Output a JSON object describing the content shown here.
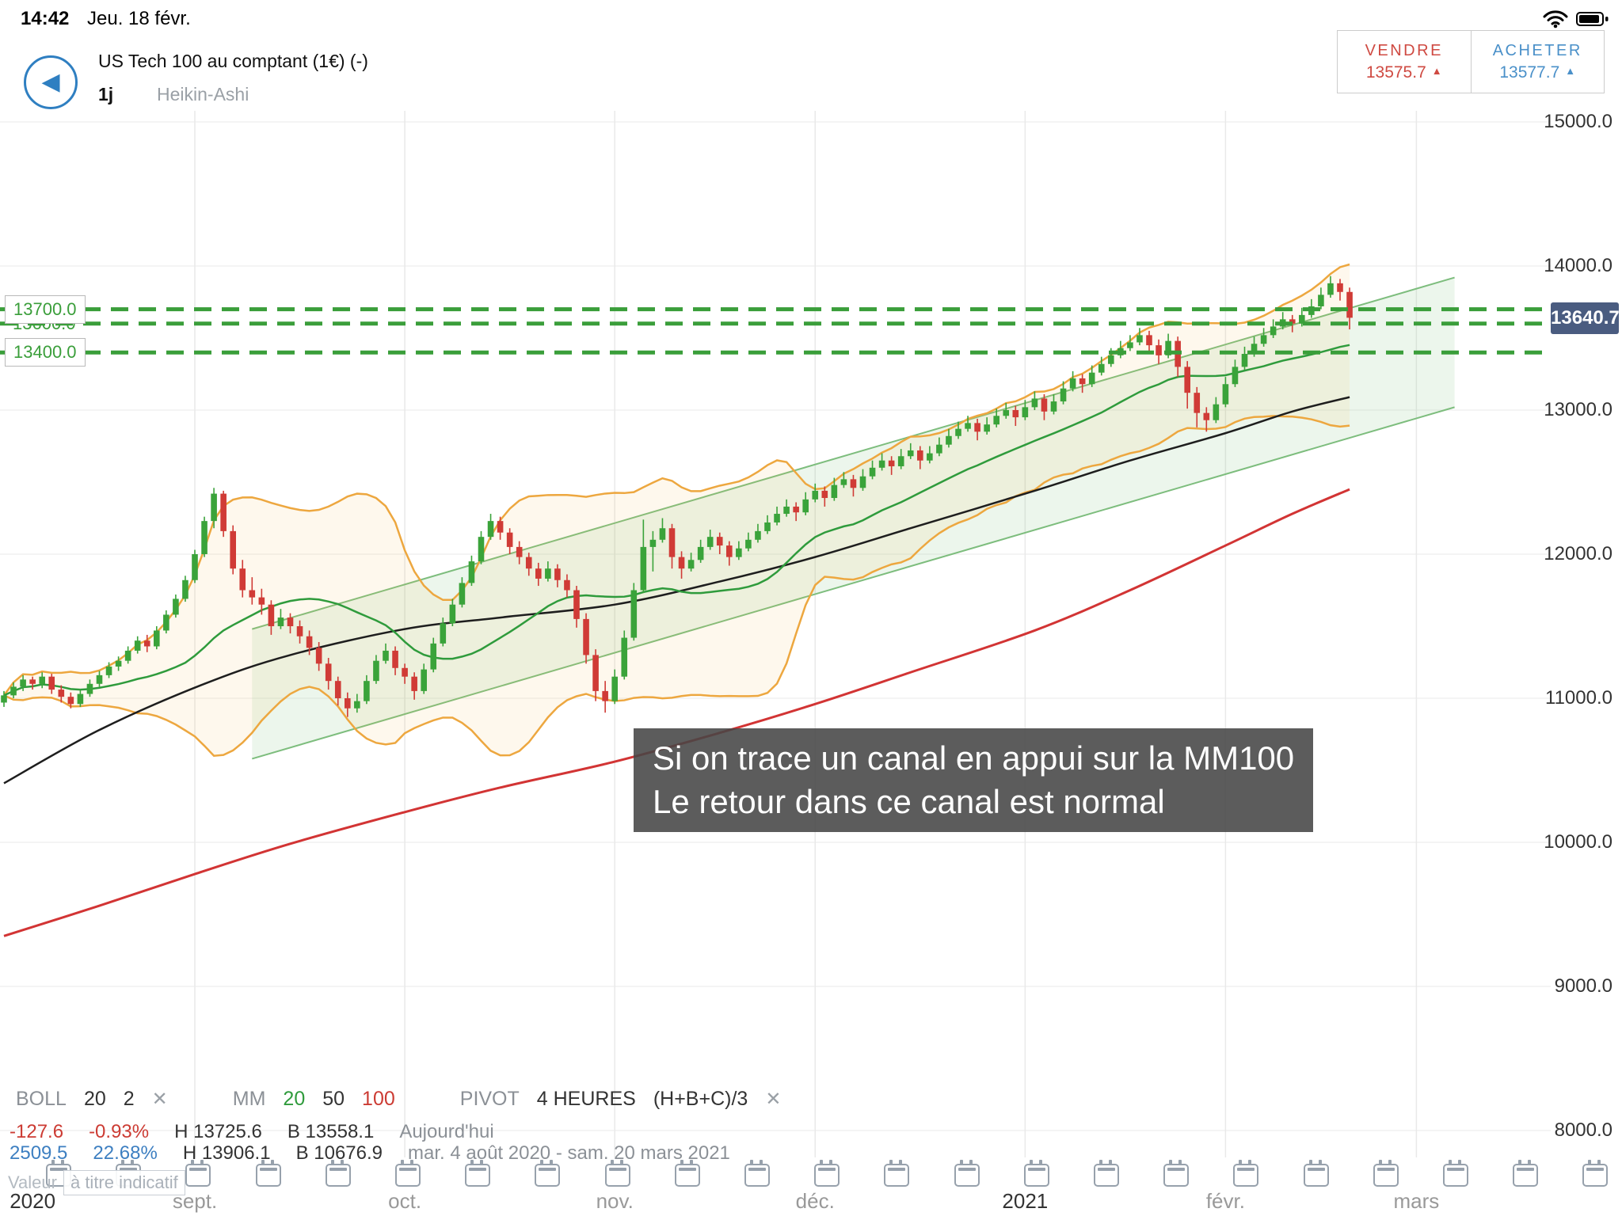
{
  "status_bar": {
    "time": "14:42",
    "date": "Jeu. 18 févr."
  },
  "header": {
    "title": "US Tech 100 au comptant (1€) (-)",
    "timeframe": "1j",
    "chart_type": "Heikin-Ashi",
    "sell": {
      "label": "VENDRE",
      "price": "13575.7",
      "arrow": "▲"
    },
    "buy": {
      "label": "ACHETER",
      "price": "13577.7",
      "arrow": "▲"
    }
  },
  "chart_data": {
    "type": "candlestick-heikin-ashi",
    "title": "US Tech 100 au comptant - daily Heikin-Ashi with Bollinger(20,2), MM 20/50/100, pivots and trend channel",
    "y_axis": {
      "values": [
        15000,
        14000,
        13000,
        12000,
        11000,
        10000,
        9000,
        8000
      ],
      "ticks": [
        "15000.0",
        "14000.0",
        "13000.0",
        "12000.0",
        "11000.0",
        "10000.0",
        "9000.0",
        "8000.0"
      ]
    },
    "x_labels": [
      {
        "text": "2020",
        "i": 3,
        "grid": false,
        "strong": true
      },
      {
        "text": "sept.",
        "i": 20,
        "grid": true,
        "strong": false
      },
      {
        "text": "oct.",
        "i": 42,
        "grid": true,
        "strong": false
      },
      {
        "text": "nov.",
        "i": 64,
        "grid": true,
        "strong": false
      },
      {
        "text": "déc.",
        "i": 85,
        "grid": true,
        "strong": false
      },
      {
        "text": "2021",
        "i": 107,
        "grid": true,
        "strong": true
      },
      {
        "text": "févr.",
        "i": 128,
        "grid": true,
        "strong": false
      },
      {
        "text": "mars",
        "i": 148,
        "grid": true,
        "strong": false
      }
    ],
    "candles": [
      [
        10970,
        11050,
        10940,
        11020
      ],
      [
        11020,
        11110,
        11000,
        11080
      ],
      [
        11080,
        11160,
        11050,
        11130
      ],
      [
        11130,
        11150,
        11060,
        11100
      ],
      [
        11100,
        11180,
        11070,
        11150
      ],
      [
        11150,
        11170,
        11030,
        11060
      ],
      [
        11060,
        11090,
        10970,
        11010
      ],
      [
        11010,
        11040,
        10930,
        10960
      ],
      [
        10960,
        11060,
        10940,
        11030
      ],
      [
        11030,
        11130,
        11010,
        11100
      ],
      [
        11100,
        11190,
        11080,
        11160
      ],
      [
        11160,
        11250,
        11140,
        11220
      ],
      [
        11220,
        11290,
        11190,
        11260
      ],
      [
        11260,
        11360,
        11240,
        11330
      ],
      [
        11330,
        11430,
        11310,
        11400
      ],
      [
        11400,
        11440,
        11320,
        11360
      ],
      [
        11360,
        11500,
        11340,
        11470
      ],
      [
        11470,
        11610,
        11450,
        11580
      ],
      [
        11580,
        11720,
        11560,
        11690
      ],
      [
        11690,
        11850,
        11670,
        11820
      ],
      [
        11820,
        12030,
        11800,
        12000
      ],
      [
        12000,
        12260,
        11980,
        12230
      ],
      [
        12230,
        12460,
        12180,
        12420
      ],
      [
        12420,
        12440,
        12120,
        12160
      ],
      [
        12160,
        12200,
        11860,
        11900
      ],
      [
        11900,
        11960,
        11700,
        11750
      ],
      [
        11750,
        11840,
        11650,
        11700
      ],
      [
        11700,
        11760,
        11580,
        11650
      ],
      [
        11650,
        11680,
        11440,
        11500
      ],
      [
        11500,
        11620,
        11480,
        11560
      ],
      [
        11560,
        11590,
        11450,
        11500
      ],
      [
        11500,
        11540,
        11380,
        11430
      ],
      [
        11430,
        11470,
        11300,
        11350
      ],
      [
        11350,
        11390,
        11190,
        11240
      ],
      [
        11240,
        11280,
        11060,
        11120
      ],
      [
        11120,
        11150,
        10950,
        11000
      ],
      [
        11000,
        11040,
        10870,
        10930
      ],
      [
        10930,
        11030,
        10900,
        10980
      ],
      [
        10980,
        11160,
        10960,
        11120
      ],
      [
        11120,
        11300,
        11100,
        11260
      ],
      [
        11260,
        11380,
        11240,
        11330
      ],
      [
        11330,
        11360,
        11160,
        11210
      ],
      [
        11210,
        11240,
        11100,
        11150
      ],
      [
        11150,
        11180,
        10990,
        11050
      ],
      [
        11050,
        11240,
        11030,
        11200
      ],
      [
        11200,
        11420,
        11180,
        11380
      ],
      [
        11380,
        11560,
        11360,
        11520
      ],
      [
        11520,
        11690,
        11500,
        11650
      ],
      [
        11650,
        11840,
        11630,
        11800
      ],
      [
        11800,
        11990,
        11780,
        11950
      ],
      [
        11950,
        12160,
        11930,
        12120
      ],
      [
        12120,
        12280,
        12100,
        12230
      ],
      [
        12230,
        12260,
        12100,
        12150
      ],
      [
        12150,
        12180,
        12000,
        12050
      ],
      [
        12050,
        12090,
        11930,
        11980
      ],
      [
        11980,
        12010,
        11850,
        11900
      ],
      [
        11900,
        11940,
        11780,
        11830
      ],
      [
        11830,
        11950,
        11810,
        11900
      ],
      [
        11900,
        11930,
        11770,
        11820
      ],
      [
        11820,
        11860,
        11700,
        11750
      ],
      [
        11750,
        11780,
        11490,
        11550
      ],
      [
        11550,
        11590,
        11240,
        11300
      ],
      [
        11300,
        11340,
        10980,
        11050
      ],
      [
        11050,
        11120,
        10900,
        10980
      ],
      [
        10980,
        11200,
        10960,
        11150
      ],
      [
        11150,
        11470,
        11130,
        11420
      ],
      [
        11420,
        11800,
        11400,
        11750
      ],
      [
        11750,
        12240,
        11730,
        12050
      ],
      [
        12050,
        12160,
        11880,
        12100
      ],
      [
        12100,
        12250,
        12080,
        12180
      ],
      [
        12180,
        12210,
        11900,
        11980
      ],
      [
        11980,
        12020,
        11830,
        11900
      ],
      [
        11900,
        12010,
        11880,
        11960
      ],
      [
        11960,
        12100,
        11940,
        12050
      ],
      [
        12050,
        12170,
        12030,
        12120
      ],
      [
        12120,
        12150,
        12000,
        12060
      ],
      [
        12060,
        12090,
        11920,
        11980
      ],
      [
        11980,
        12090,
        11960,
        12040
      ],
      [
        12040,
        12150,
        12020,
        12100
      ],
      [
        12100,
        12210,
        12080,
        12160
      ],
      [
        12160,
        12270,
        12140,
        12220
      ],
      [
        12220,
        12330,
        12200,
        12280
      ],
      [
        12280,
        12380,
        12260,
        12330
      ],
      [
        12330,
        12360,
        12230,
        12290
      ],
      [
        12290,
        12430,
        12270,
        12380
      ],
      [
        12380,
        12490,
        12360,
        12440
      ],
      [
        12440,
        12470,
        12330,
        12390
      ],
      [
        12390,
        12530,
        12370,
        12480
      ],
      [
        12480,
        12570,
        12460,
        12520
      ],
      [
        12520,
        12550,
        12400,
        12460
      ],
      [
        12460,
        12590,
        12440,
        12540
      ],
      [
        12540,
        12650,
        12520,
        12600
      ],
      [
        12600,
        12700,
        12580,
        12650
      ],
      [
        12650,
        12680,
        12550,
        12610
      ],
      [
        12610,
        12730,
        12590,
        12680
      ],
      [
        12680,
        12770,
        12660,
        12720
      ],
      [
        12720,
        12750,
        12590,
        12650
      ],
      [
        12650,
        12750,
        12630,
        12700
      ],
      [
        12700,
        12810,
        12680,
        12760
      ],
      [
        12760,
        12870,
        12740,
        12820
      ],
      [
        12820,
        12920,
        12800,
        12870
      ],
      [
        12870,
        12960,
        12850,
        12910
      ],
      [
        12910,
        12940,
        12790,
        12850
      ],
      [
        12850,
        12950,
        12830,
        12900
      ],
      [
        12900,
        13010,
        12880,
        12960
      ],
      [
        12960,
        13050,
        12940,
        13000
      ],
      [
        13000,
        13030,
        12890,
        12950
      ],
      [
        12950,
        13070,
        12930,
        13020
      ],
      [
        13020,
        13130,
        13000,
        13080
      ],
      [
        13080,
        13110,
        12930,
        12990
      ],
      [
        12990,
        13110,
        12970,
        13060
      ],
      [
        13060,
        13200,
        13040,
        13150
      ],
      [
        13150,
        13270,
        13130,
        13220
      ],
      [
        13220,
        13250,
        13120,
        13180
      ],
      [
        13180,
        13310,
        13160,
        13260
      ],
      [
        13260,
        13370,
        13240,
        13320
      ],
      [
        13320,
        13430,
        13300,
        13380
      ],
      [
        13380,
        13480,
        13360,
        13430
      ],
      [
        13430,
        13520,
        13410,
        13470
      ],
      [
        13470,
        13570,
        13450,
        13520
      ],
      [
        13520,
        13550,
        13390,
        13450
      ],
      [
        13450,
        13490,
        13320,
        13380
      ],
      [
        13380,
        13530,
        13360,
        13480
      ],
      [
        13480,
        13510,
        13230,
        13300
      ],
      [
        13300,
        13340,
        13010,
        13120
      ],
      [
        13120,
        13160,
        12880,
        12980
      ],
      [
        12980,
        13020,
        12850,
        12930
      ],
      [
        12930,
        13090,
        12910,
        13040
      ],
      [
        13040,
        13230,
        13020,
        13180
      ],
      [
        13180,
        13350,
        13160,
        13300
      ],
      [
        13300,
        13440,
        13280,
        13390
      ],
      [
        13390,
        13510,
        13370,
        13460
      ],
      [
        13460,
        13570,
        13440,
        13520
      ],
      [
        13520,
        13630,
        13500,
        13580
      ],
      [
        13580,
        13680,
        13560,
        13630
      ],
      [
        13630,
        13660,
        13540,
        13600
      ],
      [
        13600,
        13710,
        13580,
        13660
      ],
      [
        13660,
        13770,
        13640,
        13720
      ],
      [
        13720,
        13850,
        13700,
        13800
      ],
      [
        13800,
        13930,
        13780,
        13880
      ],
      [
        13880,
        13910,
        13760,
        13820
      ],
      [
        13820,
        13850,
        13560,
        13640.7
      ]
    ],
    "mm50": [
      [
        0,
        10410
      ],
      [
        10,
        10780
      ],
      [
        21,
        11100
      ],
      [
        30,
        11300
      ],
      [
        42,
        11480
      ],
      [
        52,
        11560
      ],
      [
        64,
        11650
      ],
      [
        75,
        11810
      ],
      [
        85,
        11980
      ],
      [
        95,
        12180
      ],
      [
        108,
        12440
      ],
      [
        118,
        12650
      ],
      [
        128,
        12840
      ],
      [
        135,
        12990
      ],
      [
        141,
        13090
      ]
    ],
    "mm100": [
      [
        0,
        9350
      ],
      [
        10,
        9560
      ],
      [
        20,
        9780
      ],
      [
        30,
        9990
      ],
      [
        42,
        10210
      ],
      [
        52,
        10380
      ],
      [
        64,
        10560
      ],
      [
        75,
        10760
      ],
      [
        85,
        10960
      ],
      [
        95,
        11180
      ],
      [
        108,
        11470
      ],
      [
        118,
        11750
      ],
      [
        128,
        12060
      ],
      [
        135,
        12280
      ],
      [
        141,
        12450
      ]
    ],
    "channel": {
      "upper": [
        [
          26,
          11480
        ],
        [
          152,
          13920
        ]
      ],
      "lower": [
        [
          26,
          10580
        ],
        [
          152,
          13020
        ]
      ]
    },
    "pivot_levels": [
      13700.0,
      13600.0,
      13400.0
    ],
    "pivot_labels": [
      "13700.0",
      "13600.0",
      "13400.0"
    ],
    "current_price": "13640.7",
    "annotation": {
      "line1": "Si on trace un canal en appui sur la MM100",
      "line2": "Le retour dans ce canal est normal"
    },
    "colors": {
      "candle_up": "#3aa33a",
      "candle_down": "#d03b36",
      "mm20": "#2f9b3c",
      "mm50": "#1e1e1e",
      "mm100": "#d23434",
      "bollinger": "#eda73f",
      "channel": "#7dbd7d",
      "pivot": "#3a9e3a",
      "price_badge": "#4a5c80",
      "sell": "#cf4a42",
      "buy": "#4a90c9"
    }
  },
  "legend": {
    "boll": {
      "name": "BOLL",
      "p1": "20",
      "p2": "2",
      "close": "✕"
    },
    "mm": {
      "name": "MM",
      "p1": "20",
      "p2": "50",
      "p3": "100"
    },
    "pivot": {
      "name": "PIVOT",
      "p1": "4 HEURES",
      "p2": "(H+B+C)/3",
      "close": "✕"
    },
    "row_today": {
      "change": "-127.6",
      "change_pct": "-0.93%",
      "high": "H 13725.6",
      "low": "B 13558.1",
      "label": "Aujourd'hui"
    },
    "row_period": {
      "change": "2509.5",
      "change_pct": "22.68%",
      "high": "H 13906.1",
      "low": "B 10676.9",
      "label": "mar. 4 août 2020 - sam. 20 mars 2021"
    },
    "disclaimer_prefix": "Valeur",
    "disclaimer_boxed": "à titre indicatif"
  },
  "calendar_row": {
    "count": 23
  }
}
